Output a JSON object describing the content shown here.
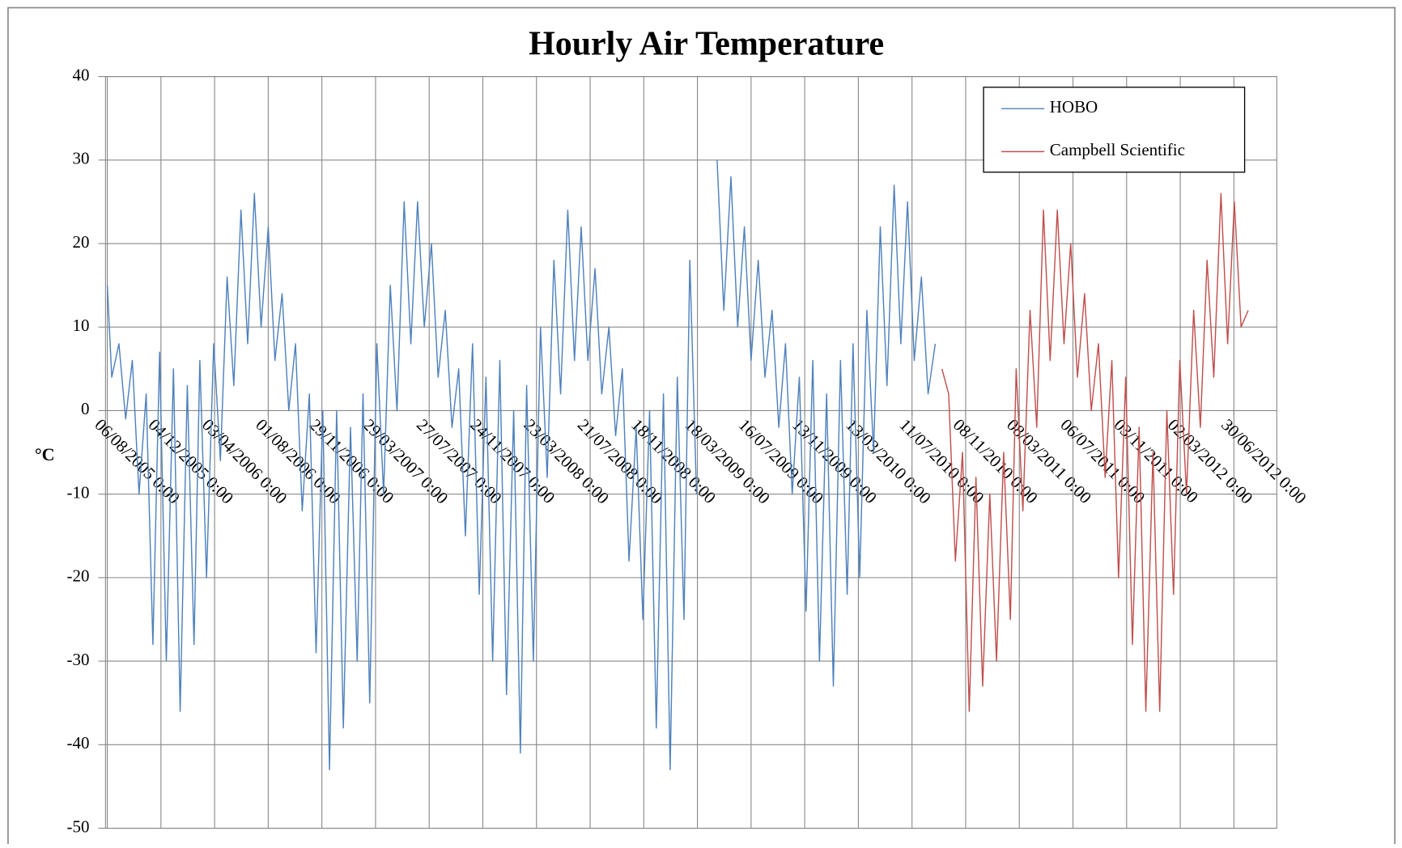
{
  "chart_data": {
    "type": "line",
    "title": "Hourly Air Temperature",
    "y_label": "°C",
    "grid": true,
    "legend": "top-right",
    "xlim": [
      "2005-08-02",
      "2012-10-04"
    ],
    "xticks": [
      {
        "value": "2005-08-06",
        "label": "06/08/2005 0:00"
      },
      {
        "value": "2005-12-04",
        "label": "04/12/2005 0:00"
      },
      {
        "value": "2006-04-03",
        "label": "03/04/2006 0:00"
      },
      {
        "value": "2006-08-01",
        "label": "01/08/2006 0:00"
      },
      {
        "value": "2006-11-29",
        "label": "29/11/2006 0:00"
      },
      {
        "value": "2007-03-29",
        "label": "29/03/2007 0:00"
      },
      {
        "value": "2007-07-27",
        "label": "27/07/2007 0:00"
      },
      {
        "value": "2007-11-24",
        "label": "24/11/2007 0:00"
      },
      {
        "value": "2008-03-23",
        "label": "23/03/2008 0:00"
      },
      {
        "value": "2008-07-21",
        "label": "21/07/2008 0:00"
      },
      {
        "value": "2008-11-18",
        "label": "18/11/2008 0:00"
      },
      {
        "value": "2009-03-18",
        "label": "18/03/2009 0:00"
      },
      {
        "value": "2009-07-16",
        "label": "16/07/2009 0:00"
      },
      {
        "value": "2009-11-13",
        "label": "13/11/2009 0:00"
      },
      {
        "value": "2010-03-13",
        "label": "13/03/2010 0:00"
      },
      {
        "value": "2010-07-11",
        "label": "11/07/2010 0:00"
      },
      {
        "value": "2010-11-08",
        "label": "08/11/2010 0:00"
      },
      {
        "value": "2011-03-08",
        "label": "08/03/2011 0:00"
      },
      {
        "value": "2011-07-06",
        "label": "06/07/2011 0:00"
      },
      {
        "value": "2011-11-03",
        "label": "03/11/2011 0:00"
      },
      {
        "value": "2012-03-02",
        "label": "02/03/2012 0:00"
      },
      {
        "value": "2012-06-30",
        "label": "30/06/2012 0:00"
      }
    ],
    "ylim": [
      -50,
      40
    ],
    "yticks": [
      -50,
      -40,
      -30,
      -20,
      -10,
      0,
      10,
      20,
      30,
      40
    ],
    "x": [
      "2005-08-06",
      "2005-08-16",
      "2005-09-01",
      "2005-09-16",
      "2005-10-01",
      "2005-10-16",
      "2005-11-01",
      "2005-11-16",
      "2005-12-01",
      "2005-12-16",
      "2006-01-01",
      "2006-01-16",
      "2006-02-01",
      "2006-02-16",
      "2006-03-01",
      "2006-03-16",
      "2006-04-01",
      "2006-04-16",
      "2006-05-01",
      "2006-05-16",
      "2006-06-01",
      "2006-06-16",
      "2006-07-01",
      "2006-07-16",
      "2006-08-01",
      "2006-08-16",
      "2006-09-01",
      "2006-09-16",
      "2006-10-01",
      "2006-10-16",
      "2006-11-01",
      "2006-11-16",
      "2006-12-01",
      "2006-12-16",
      "2007-01-01",
      "2007-01-16",
      "2007-02-01",
      "2007-02-16",
      "2007-03-01",
      "2007-03-16",
      "2007-04-01",
      "2007-04-16",
      "2007-05-01",
      "2007-05-16",
      "2007-06-01",
      "2007-06-16",
      "2007-07-01",
      "2007-07-16",
      "2007-08-01",
      "2007-08-16",
      "2007-09-01",
      "2007-09-16",
      "2007-10-01",
      "2007-10-16",
      "2007-11-01",
      "2007-11-16",
      "2007-12-01",
      "2007-12-16",
      "2008-01-01",
      "2008-01-16",
      "2008-02-01",
      "2008-02-16",
      "2008-03-01",
      "2008-03-16",
      "2008-04-01",
      "2008-04-16",
      "2008-05-01",
      "2008-05-16",
      "2008-06-01",
      "2008-06-16",
      "2008-07-01",
      "2008-07-16",
      "2008-08-01",
      "2008-08-16",
      "2008-09-01",
      "2008-09-16",
      "2008-10-01",
      "2008-10-16",
      "2008-11-01",
      "2008-11-16",
      "2008-12-01",
      "2008-12-16",
      "2009-01-01",
      "2009-01-16",
      "2009-02-01",
      "2009-02-16",
      "2009-03-01",
      "2009-03-16",
      "2009-04-01",
      "2009-04-16",
      "2009-05-01",
      "2009-05-16",
      "2009-06-01",
      "2009-06-16",
      "2009-07-01",
      "2009-07-16",
      "2009-08-01",
      "2009-08-16",
      "2009-09-01",
      "2009-09-16",
      "2009-10-01",
      "2009-10-16",
      "2009-11-01",
      "2009-11-16",
      "2009-12-01",
      "2009-12-16",
      "2010-01-01",
      "2010-01-16",
      "2010-02-01",
      "2010-02-16",
      "2010-03-01",
      "2010-03-16",
      "2010-04-01",
      "2010-04-16",
      "2010-05-01",
      "2010-05-16",
      "2010-06-01",
      "2010-06-16",
      "2010-07-01",
      "2010-07-16",
      "2010-08-01",
      "2010-08-16",
      "2010-09-01",
      "2010-09-16",
      "2010-10-01",
      "2010-10-16",
      "2010-11-01",
      "2010-11-16",
      "2010-12-01",
      "2010-12-16",
      "2011-01-01",
      "2011-01-16",
      "2011-02-01",
      "2011-02-16",
      "2011-03-01",
      "2011-03-16",
      "2011-04-01",
      "2011-04-16",
      "2011-05-01",
      "2011-05-16",
      "2011-06-01",
      "2011-06-16",
      "2011-07-01",
      "2011-07-16",
      "2011-08-01",
      "2011-08-16",
      "2011-09-01",
      "2011-09-16",
      "2011-10-01",
      "2011-10-16",
      "2011-11-01",
      "2011-11-16",
      "2011-12-01",
      "2011-12-16",
      "2012-01-01",
      "2012-01-16",
      "2012-02-01",
      "2012-02-16",
      "2012-03-01",
      "2012-03-16",
      "2012-04-01",
      "2012-04-16",
      "2012-05-01",
      "2012-05-16",
      "2012-06-01",
      "2012-06-16",
      "2012-07-01",
      "2012-07-16",
      "2012-08-01"
    ],
    "series": [
      {
        "name": "HOBO",
        "color": "#4f81bd",
        "values": [
          15,
          4,
          8,
          -1,
          6,
          -10,
          2,
          -28,
          7,
          -30,
          5,
          -36,
          3,
          -28,
          6,
          -20,
          8,
          -6,
          16,
          3,
          24,
          8,
          26,
          10,
          22,
          6,
          14,
          0,
          8,
          -12,
          2,
          -29,
          0,
          -43,
          0,
          -38,
          -2,
          -30,
          2,
          -35,
          8,
          -10,
          15,
          0,
          25,
          8,
          25,
          10,
          20,
          4,
          12,
          -2,
          5,
          -15,
          8,
          -22,
          4,
          -30,
          6,
          -34,
          0,
          -41,
          3,
          -30,
          10,
          -8,
          18,
          2,
          24,
          6,
          22,
          6,
          17,
          2,
          10,
          -3,
          5,
          -18,
          -2,
          -25,
          0,
          -38,
          2,
          -43,
          4,
          -25,
          18,
          -10,
          null,
          null,
          30,
          12,
          28,
          10,
          22,
          6,
          18,
          4,
          12,
          -2,
          8,
          -10,
          4,
          -24,
          6,
          -30,
          2,
          -33,
          6,
          -22,
          8,
          -20,
          12,
          -5,
          22,
          3,
          27,
          8,
          25,
          6,
          16,
          2,
          8,
          null,
          null,
          null,
          null,
          null,
          null,
          null,
          null,
          null,
          null,
          null,
          null,
          null,
          null,
          null,
          null,
          null,
          null,
          null,
          null,
          null,
          null,
          null,
          null,
          null,
          null,
          null,
          null,
          null,
          null,
          null,
          null,
          null,
          null,
          null,
          null,
          null,
          null,
          null,
          null,
          null,
          null,
          null,
          null,
          null,
          null
        ]
      },
      {
        "name": "Campbell Scientific",
        "color": "#c0504d",
        "values": [
          null,
          null,
          null,
          null,
          null,
          null,
          null,
          null,
          null,
          null,
          null,
          null,
          null,
          null,
          null,
          null,
          null,
          null,
          null,
          null,
          null,
          null,
          null,
          null,
          null,
          null,
          null,
          null,
          null,
          null,
          null,
          null,
          null,
          null,
          null,
          null,
          null,
          null,
          null,
          null,
          null,
          null,
          null,
          null,
          null,
          null,
          null,
          null,
          null,
          null,
          null,
          null,
          null,
          null,
          null,
          null,
          null,
          null,
          null,
          null,
          null,
          null,
          null,
          null,
          null,
          null,
          null,
          null,
          null,
          null,
          null,
          null,
          null,
          null,
          null,
          null,
          null,
          null,
          null,
          null,
          null,
          null,
          null,
          null,
          null,
          null,
          null,
          null,
          null,
          null,
          null,
          null,
          null,
          null,
          null,
          null,
          null,
          null,
          null,
          null,
          null,
          null,
          null,
          null,
          null,
          null,
          null,
          null,
          null,
          null,
          null,
          null,
          null,
          null,
          null,
          null,
          null,
          null,
          null,
          null,
          null,
          null,
          null,
          5,
          2,
          -18,
          -5,
          -36,
          -8,
          -33,
          -10,
          -30,
          -5,
          -25,
          5,
          -12,
          12,
          -2,
          24,
          6,
          24,
          8,
          20,
          4,
          14,
          0,
          8,
          -8,
          6,
          -20,
          4,
          -28,
          -2,
          -36,
          -5,
          -36,
          0,
          -22,
          6,
          -10,
          12,
          -2,
          18,
          4,
          26,
          8,
          25,
          10,
          12
        ]
      }
    ]
  }
}
